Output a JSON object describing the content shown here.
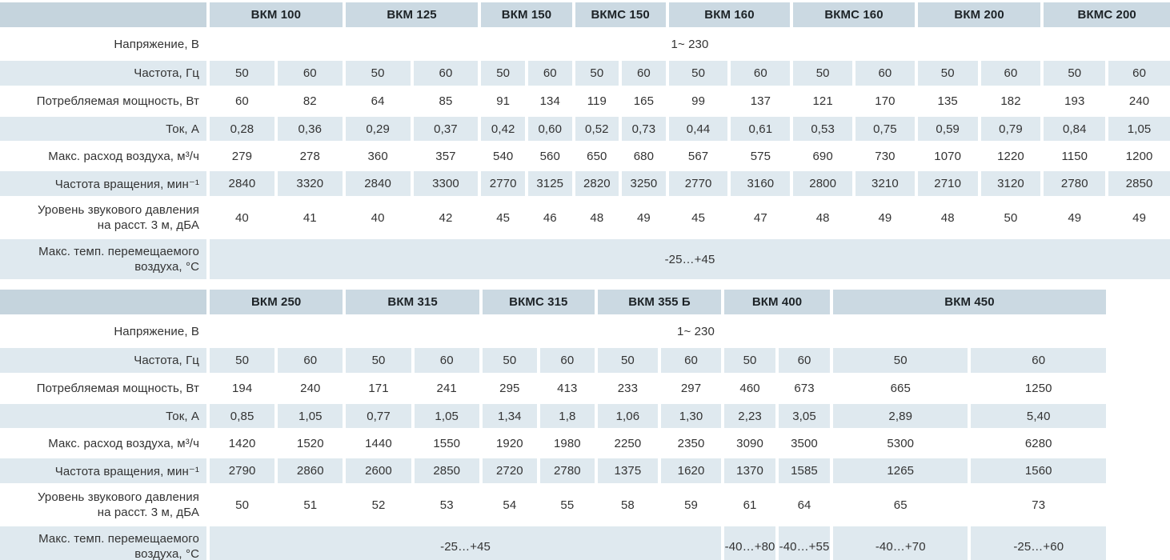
{
  "colors": {
    "model_header_bg": "#cbd9e2",
    "corner_cell_bg": "#c5d4dd",
    "stripe_row_bg": "#dfe9ef",
    "text": "#333333",
    "header_text": "#1d2327",
    "background": "#ffffff"
  },
  "tables": [
    {
      "name": "vkm-100-200",
      "models": [
        "ВКМ 100",
        "ВКМ 125",
        "ВКМ 150",
        "ВКМС 150",
        "ВКМ 160",
        "ВКМС 160",
        "ВКМ 200",
        "ВКМС 200"
      ],
      "rows": {
        "voltage": {
          "label": "Напряжение, В",
          "value": "1~ 230"
        },
        "frequency": {
          "label": "Частота, Гц",
          "values": [
            "50",
            "60",
            "50",
            "60",
            "50",
            "60",
            "50",
            "60",
            "50",
            "60",
            "50",
            "60",
            "50",
            "60",
            "50",
            "60"
          ]
        },
        "power": {
          "label": "Потребляемая мощность, Вт",
          "values": [
            "60",
            "82",
            "64",
            "85",
            "91",
            "134",
            "119",
            "165",
            "99",
            "137",
            "121",
            "170",
            "135",
            "182",
            "193",
            "240"
          ]
        },
        "current": {
          "label": "Ток, А",
          "values": [
            "0,28",
            "0,36",
            "0,29",
            "0,37",
            "0,42",
            "0,60",
            "0,52",
            "0,73",
            "0,44",
            "0,61",
            "0,53",
            "0,75",
            "0,59",
            "0,79",
            "0,84",
            "1,05"
          ]
        },
        "airflow": {
          "label": "Макс. расход воздуха, м³/ч",
          "values": [
            "279",
            "278",
            "360",
            "357",
            "540",
            "560",
            "650",
            "680",
            "567",
            "575",
            "690",
            "730",
            "1070",
            "1220",
            "1150",
            "1200"
          ]
        },
        "speed": {
          "label": "Частота вращения,  мин⁻¹",
          "values": [
            "2840",
            "3320",
            "2840",
            "3300",
            "2770",
            "3125",
            "2820",
            "3250",
            "2770",
            "3160",
            "2800",
            "3210",
            "2710",
            "3120",
            "2780",
            "2850"
          ]
        },
        "sound": {
          "label_lines": [
            "Уровень звукового давления",
            "на расст. 3 м, дБА"
          ],
          "values": [
            "40",
            "41",
            "40",
            "42",
            "45",
            "46",
            "48",
            "49",
            "45",
            "47",
            "48",
            "49",
            "48",
            "50",
            "49",
            "49"
          ]
        },
        "temp": {
          "label_lines": [
            "Макс. темп. перемещаемого",
            "воздуха, °С"
          ],
          "cells": [
            {
              "value": "-25…+45",
              "span": 16
            }
          ]
        }
      }
    },
    {
      "name": "vkm-250-450",
      "models": [
        "ВКМ 250",
        "ВКМ 315",
        "ВКМС 315",
        "ВКМ 355 Б",
        "ВКМ 400",
        "ВКМ 450"
      ],
      "rows": {
        "voltage": {
          "label": "Напряжение, В",
          "value": "1~ 230"
        },
        "frequency": {
          "label": "Частота, Гц",
          "values": [
            "50",
            "60",
            "50",
            "60",
            "50",
            "60",
            "50",
            "60",
            "50",
            "60",
            "50",
            "60"
          ]
        },
        "power": {
          "label": "Потребляемая мощность, Вт",
          "values": [
            "194",
            "240",
            "171",
            "241",
            "295",
            "413",
            "233",
            "297",
            "460",
            "673",
            "665",
            "1250"
          ]
        },
        "current": {
          "label": "Ток, А",
          "values": [
            "0,85",
            "1,05",
            "0,77",
            "1,05",
            "1,34",
            "1,8",
            "1,06",
            "1,30",
            "2,23",
            "3,05",
            "2,89",
            "5,40"
          ]
        },
        "airflow": {
          "label": "Макс. расход воздуха, м³/ч",
          "values": [
            "1420",
            "1520",
            "1440",
            "1550",
            "1920",
            "1980",
            "2250",
            "2350",
            "3090",
            "3500",
            "5300",
            "6280"
          ]
        },
        "speed": {
          "label": "Частота вращения,  мин⁻¹",
          "values": [
            "2790",
            "2860",
            "2600",
            "2850",
            "2720",
            "2780",
            "1375",
            "1620",
            "1370",
            "1585",
            "1265",
            "1560"
          ]
        },
        "sound": {
          "label_lines": [
            "Уровень звукового давления",
            "на расст. 3 м, дБА"
          ],
          "values": [
            "50",
            "51",
            "52",
            "53",
            "54",
            "55",
            "58",
            "59",
            "61",
            "64",
            "65",
            "73"
          ]
        },
        "temp": {
          "label_lines": [
            "Макс. темп. перемещаемого",
            "воздуха, °С"
          ],
          "cells": [
            {
              "value": "-25…+45",
              "span": 8
            },
            {
              "value": "-40…+80",
              "span": 1
            },
            {
              "value": "-40…+55",
              "span": 1
            },
            {
              "value": "-40…+70",
              "span": 1
            },
            {
              "value": "-25…+60",
              "span": 1
            }
          ]
        }
      }
    }
  ]
}
